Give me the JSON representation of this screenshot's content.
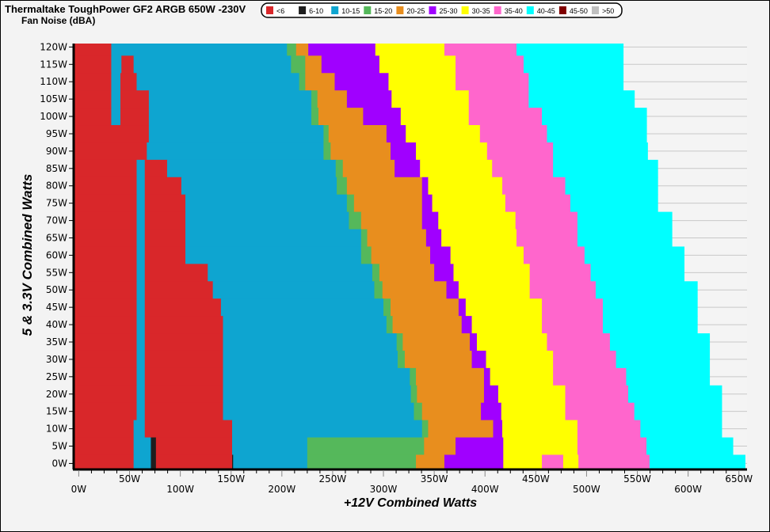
{
  "chart_data": {
    "type": "heatmap",
    "title": "Thermaltake ToughPower GF2 ARGB 650W -230V",
    "subtitle": "Fan Noise (dBA)",
    "xlabel": "+12V Combined Watts",
    "ylabel": "5 & 3.3V Combined Watts",
    "xlim": [
      -5,
      658
    ],
    "ylim": [
      -1.5,
      121
    ],
    "grid": true,
    "legend_position": "top",
    "x_ticks": [
      "0W",
      "50W",
      "100W",
      "150W",
      "200W",
      "250W",
      "300W",
      "350W",
      "400W",
      "450W",
      "500W",
      "550W",
      "600W",
      "650W"
    ],
    "x_tick_values": [
      0,
      50,
      100,
      150,
      200,
      250,
      300,
      350,
      400,
      450,
      500,
      550,
      600,
      650
    ],
    "y_ticks": [
      "0W",
      "5W",
      "10W",
      "15W",
      "20W",
      "25W",
      "30W",
      "35W",
      "40W",
      "45W",
      "50W",
      "55W",
      "60W",
      "65W",
      "70W",
      "75W",
      "80W",
      "85W",
      "90W",
      "95W",
      "100W",
      "105W",
      "110W",
      "115W",
      "120W"
    ],
    "levels": [
      {
        "label": "<6",
        "color": "#d9272a"
      },
      {
        "label": "6-10",
        "color": "#1e1e1e"
      },
      {
        "label": "10-15",
        "color": "#0ea5d0"
      },
      {
        "label": "15-20",
        "color": "#55b85b"
      },
      {
        "label": "20-25",
        "color": "#e88e1e"
      },
      {
        "label": "25-30",
        "color": "#a000ff"
      },
      {
        "label": "30-35",
        "color": "#ffff00"
      },
      {
        "label": "35-40",
        "color": "#ff66cc"
      },
      {
        "label": "40-45",
        "color": "#00ffff"
      },
      {
        "label": "45-50",
        "color": "#800000"
      },
      {
        "label": ">50",
        "color": "#c0c0c0"
      }
    ],
    "rows_note_units": "each row: y = 5&3.3V watts, segments = [level index, +12V watts where segment ends]",
    "rows": [
      {
        "y": 120,
        "segments": [
          [
            0,
            32
          ],
          [
            2,
            205
          ],
          [
            3,
            214
          ],
          [
            4,
            226
          ],
          [
            5,
            292
          ],
          [
            6,
            360
          ],
          [
            7,
            431
          ],
          [
            8,
            536
          ]
        ]
      },
      {
        "y": 115,
        "segments": [
          [
            0,
            32
          ],
          [
            2,
            42
          ],
          [
            0,
            54
          ],
          [
            2,
            209
          ],
          [
            3,
            223
          ],
          [
            4,
            239
          ],
          [
            5,
            296
          ],
          [
            6,
            371
          ],
          [
            7,
            438
          ],
          [
            8,
            536
          ]
        ]
      },
      {
        "y": 110,
        "segments": [
          [
            0,
            32
          ],
          [
            2,
            41
          ],
          [
            0,
            57
          ],
          [
            2,
            217
          ],
          [
            3,
            223
          ],
          [
            4,
            252
          ],
          [
            5,
            305
          ],
          [
            6,
            371
          ],
          [
            7,
            443
          ],
          [
            8,
            536
          ]
        ]
      },
      {
        "y": 105,
        "segments": [
          [
            0,
            32
          ],
          [
            2,
            41
          ],
          [
            0,
            69
          ],
          [
            2,
            229
          ],
          [
            3,
            235
          ],
          [
            4,
            264
          ],
          [
            5,
            308
          ],
          [
            6,
            384
          ],
          [
            7,
            443
          ],
          [
            8,
            547
          ]
        ]
      },
      {
        "y": 100,
        "segments": [
          [
            0,
            32
          ],
          [
            2,
            41
          ],
          [
            0,
            69
          ],
          [
            2,
            229
          ],
          [
            3,
            236
          ],
          [
            4,
            280
          ],
          [
            5,
            317
          ],
          [
            6,
            384
          ],
          [
            7,
            456
          ],
          [
            8,
            559
          ]
        ]
      },
      {
        "y": 95,
        "segments": [
          [
            0,
            69
          ],
          [
            2,
            241
          ],
          [
            3,
            246
          ],
          [
            4,
            303
          ],
          [
            5,
            322
          ],
          [
            6,
            395
          ],
          [
            7,
            461
          ],
          [
            8,
            559
          ]
        ]
      },
      {
        "y": 90,
        "segments": [
          [
            0,
            67
          ],
          [
            2,
            241
          ],
          [
            3,
            248
          ],
          [
            4,
            307
          ],
          [
            5,
            332
          ],
          [
            6,
            402
          ],
          [
            7,
            467
          ],
          [
            8,
            560
          ]
        ]
      },
      {
        "y": 85,
        "segments": [
          [
            0,
            57
          ],
          [
            2,
            65
          ],
          [
            0,
            87
          ],
          [
            2,
            253
          ],
          [
            3,
            260
          ],
          [
            4,
            311
          ],
          [
            5,
            336
          ],
          [
            6,
            407
          ],
          [
            7,
            467
          ],
          [
            8,
            570
          ]
        ]
      },
      {
        "y": 80,
        "segments": [
          [
            0,
            57
          ],
          [
            2,
            65
          ],
          [
            0,
            101
          ],
          [
            2,
            254
          ],
          [
            3,
            264
          ],
          [
            4,
            338
          ],
          [
            5,
            344
          ],
          [
            6,
            417
          ],
          [
            7,
            479
          ],
          [
            8,
            570
          ]
        ]
      },
      {
        "y": 75,
        "segments": [
          [
            0,
            57
          ],
          [
            2,
            65
          ],
          [
            0,
            105
          ],
          [
            2,
            264
          ],
          [
            3,
            271
          ],
          [
            4,
            338
          ],
          [
            5,
            348
          ],
          [
            6,
            420
          ],
          [
            7,
            484
          ],
          [
            8,
            570
          ]
        ]
      },
      {
        "y": 70,
        "segments": [
          [
            0,
            57
          ],
          [
            2,
            65
          ],
          [
            0,
            105
          ],
          [
            2,
            266
          ],
          [
            3,
            278
          ],
          [
            4,
            338
          ],
          [
            5,
            354
          ],
          [
            6,
            430
          ],
          [
            7,
            491
          ],
          [
            8,
            584
          ]
        ]
      },
      {
        "y": 65,
        "segments": [
          [
            0,
            57
          ],
          [
            2,
            65
          ],
          [
            0,
            105
          ],
          [
            2,
            278
          ],
          [
            3,
            284
          ],
          [
            4,
            342
          ],
          [
            5,
            357
          ],
          [
            6,
            431
          ],
          [
            7,
            491
          ],
          [
            8,
            584
          ]
        ]
      },
      {
        "y": 60,
        "segments": [
          [
            0,
            57
          ],
          [
            2,
            65
          ],
          [
            0,
            105
          ],
          [
            2,
            278
          ],
          [
            3,
            288
          ],
          [
            4,
            346
          ],
          [
            5,
            366
          ],
          [
            6,
            438
          ],
          [
            7,
            498
          ],
          [
            8,
            596
          ]
        ]
      },
      {
        "y": 55,
        "segments": [
          [
            0,
            57
          ],
          [
            2,
            65
          ],
          [
            0,
            127
          ],
          [
            2,
            289
          ],
          [
            3,
            296
          ],
          [
            4,
            350
          ],
          [
            5,
            369
          ],
          [
            6,
            444
          ],
          [
            7,
            504
          ],
          [
            8,
            596
          ]
        ]
      },
      {
        "y": 50,
        "segments": [
          [
            0,
            57
          ],
          [
            2,
            65
          ],
          [
            0,
            132
          ],
          [
            2,
            291
          ],
          [
            3,
            299
          ],
          [
            4,
            362
          ],
          [
            5,
            374
          ],
          [
            6,
            444
          ],
          [
            7,
            509
          ],
          [
            8,
            609
          ]
        ]
      },
      {
        "y": 45,
        "segments": [
          [
            0,
            57
          ],
          [
            2,
            65
          ],
          [
            0,
            140
          ],
          [
            2,
            300
          ],
          [
            3,
            307
          ],
          [
            4,
            374
          ],
          [
            5,
            381
          ],
          [
            6,
            456
          ],
          [
            7,
            516
          ],
          [
            8,
            609
          ]
        ]
      },
      {
        "y": 40,
        "segments": [
          [
            0,
            57
          ],
          [
            2,
            65
          ],
          [
            0,
            142
          ],
          [
            2,
            303
          ],
          [
            3,
            309
          ],
          [
            4,
            377
          ],
          [
            5,
            387
          ],
          [
            6,
            456
          ],
          [
            7,
            516
          ],
          [
            8,
            609
          ]
        ]
      },
      {
        "y": 35,
        "segments": [
          [
            0,
            57
          ],
          [
            2,
            65
          ],
          [
            0,
            142
          ],
          [
            2,
            313
          ],
          [
            3,
            319
          ],
          [
            4,
            385
          ],
          [
            5,
            392
          ],
          [
            6,
            461
          ],
          [
            7,
            523
          ],
          [
            8,
            621
          ]
        ]
      },
      {
        "y": 30,
        "segments": [
          [
            0,
            57
          ],
          [
            2,
            65
          ],
          [
            0,
            142
          ],
          [
            2,
            314
          ],
          [
            3,
            321
          ],
          [
            4,
            387
          ],
          [
            5,
            401
          ],
          [
            6,
            467
          ],
          [
            7,
            529
          ],
          [
            8,
            621
          ]
        ]
      },
      {
        "y": 25,
        "segments": [
          [
            0,
            57
          ],
          [
            2,
            65
          ],
          [
            0,
            142
          ],
          [
            2,
            326
          ],
          [
            3,
            332
          ],
          [
            4,
            399
          ],
          [
            5,
            405
          ],
          [
            6,
            467
          ],
          [
            7,
            539
          ],
          [
            8,
            621
          ]
        ]
      },
      {
        "y": 20,
        "segments": [
          [
            0,
            57
          ],
          [
            2,
            65
          ],
          [
            0,
            142
          ],
          [
            2,
            327
          ],
          [
            3,
            333
          ],
          [
            4,
            399
          ],
          [
            5,
            413
          ],
          [
            6,
            479
          ],
          [
            7,
            541
          ],
          [
            8,
            633
          ]
        ]
      },
      {
        "y": 15,
        "segments": [
          [
            0,
            57
          ],
          [
            2,
            65
          ],
          [
            0,
            142
          ],
          [
            2,
            330
          ],
          [
            3,
            338
          ],
          [
            4,
            396
          ],
          [
            5,
            416
          ],
          [
            6,
            479
          ],
          [
            7,
            547
          ],
          [
            8,
            633
          ]
        ]
      },
      {
        "y": 10,
        "segments": [
          [
            0,
            54
          ],
          [
            2,
            65
          ],
          [
            0,
            151
          ],
          [
            2,
            338
          ],
          [
            3,
            344
          ],
          [
            4,
            408
          ],
          [
            5,
            417
          ],
          [
            6,
            491
          ],
          [
            7,
            553
          ],
          [
            8,
            633
          ]
        ]
      },
      {
        "y": 5,
        "segments": [
          [
            0,
            54
          ],
          [
            2,
            71
          ],
          [
            1,
            76
          ],
          [
            0,
            151
          ],
          [
            2,
            225
          ],
          [
            3,
            340
          ],
          [
            4,
            371
          ],
          [
            5,
            418
          ],
          [
            6,
            491
          ],
          [
            7,
            559
          ],
          [
            8,
            644
          ]
        ]
      },
      {
        "y": 0,
        "segments": [
          [
            0,
            54
          ],
          [
            2,
            71
          ],
          [
            1,
            76
          ],
          [
            0,
            151
          ],
          [
            1,
            152
          ],
          [
            2,
            225
          ],
          [
            3,
            332
          ],
          [
            4,
            360
          ],
          [
            5,
            418
          ],
          [
            6,
            456
          ],
          [
            7,
            477
          ],
          [
            6,
            492
          ],
          [
            7,
            562
          ],
          [
            8,
            656
          ]
        ]
      }
    ]
  }
}
